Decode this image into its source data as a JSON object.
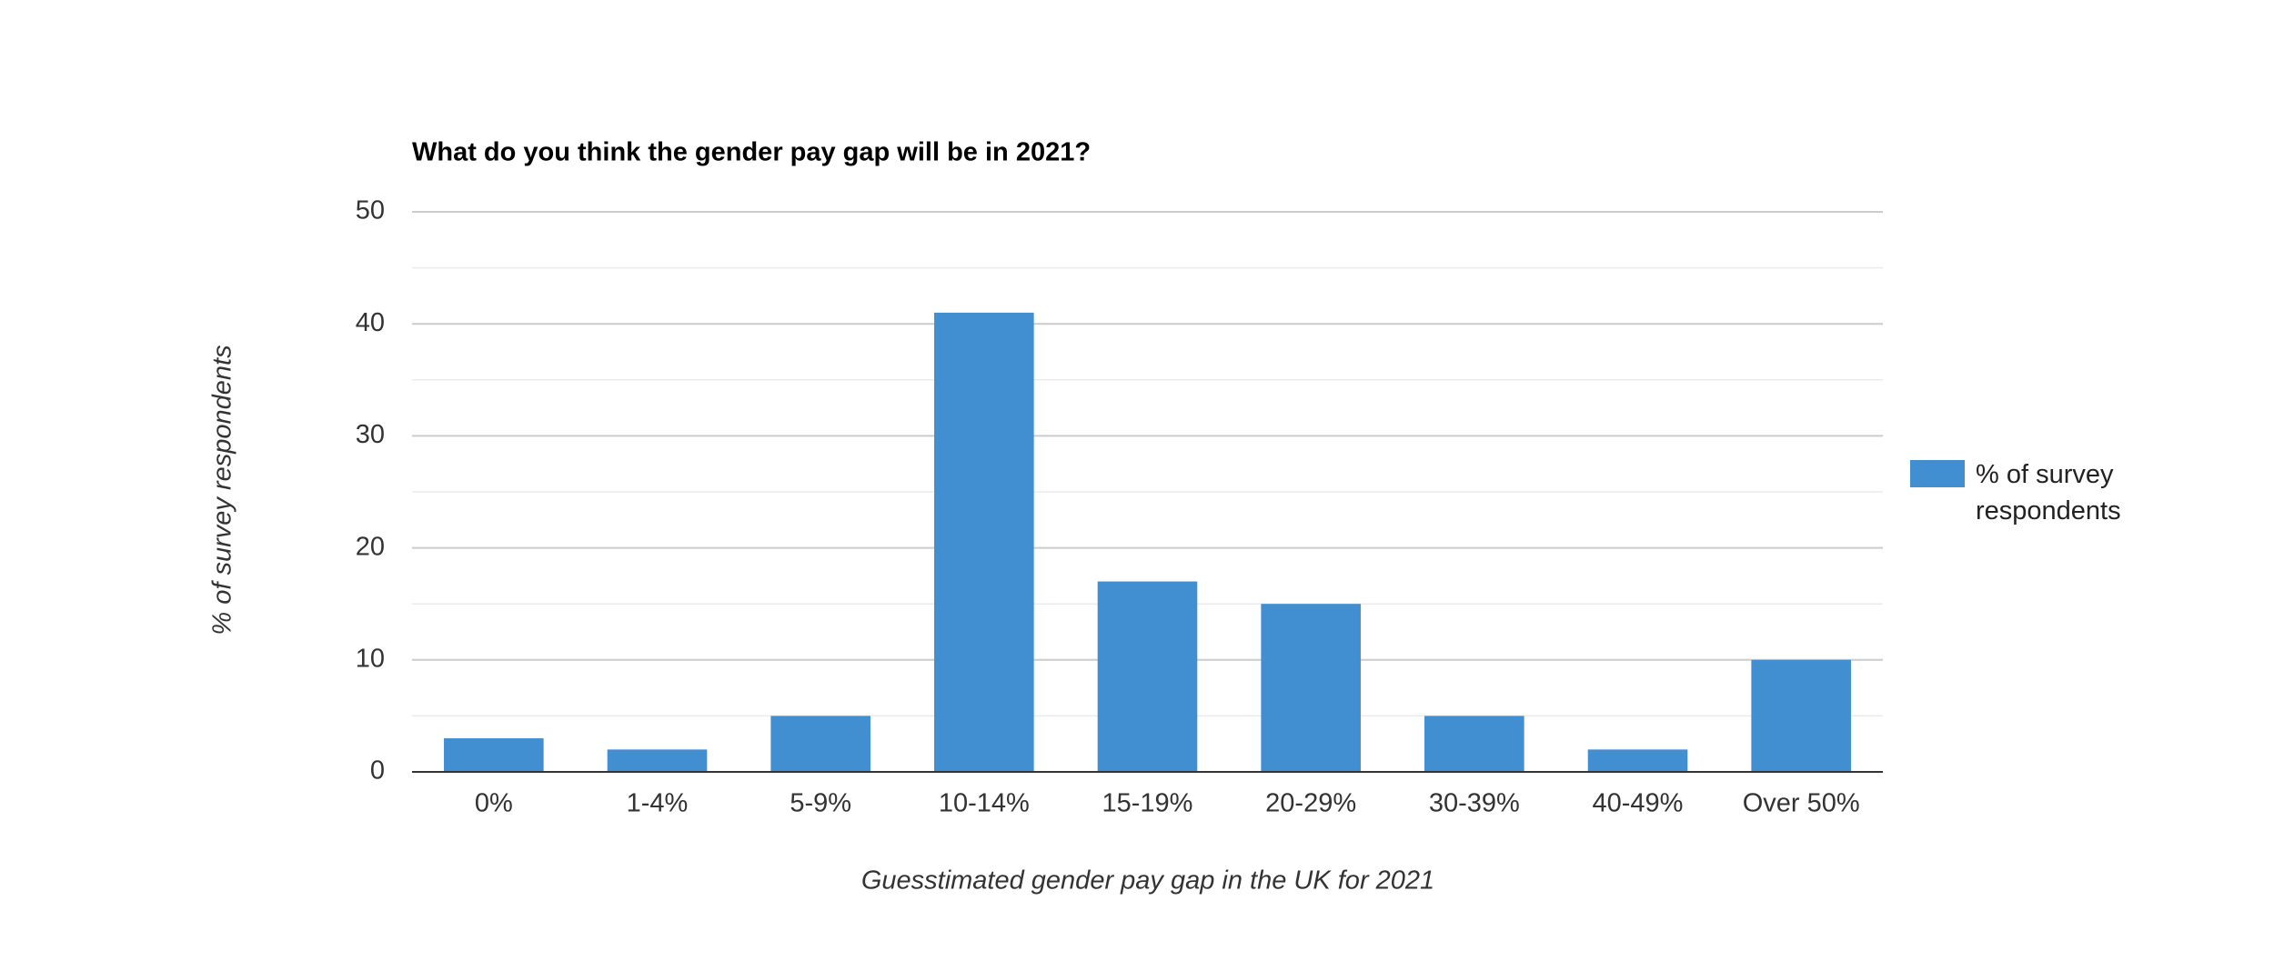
{
  "chart_data": {
    "type": "bar",
    "title": "What do you think the gender pay gap will be in 2021?",
    "x_label": "Guesstimated gender pay gap in the UK for 2021",
    "y_label": "% of survey respondents",
    "categories": [
      "0%",
      "1-4%",
      "5-9%",
      "10-14%",
      "15-19%",
      "20-29%",
      "30-39%",
      "40-49%",
      "Over 50%"
    ],
    "series": [
      {
        "name": "% of survey respondents",
        "color": "#418fd1",
        "values": [
          3,
          2,
          5,
          41,
          17,
          15,
          5,
          2,
          10
        ]
      }
    ],
    "ylim": [
      0,
      50
    ],
    "yticks": [
      0,
      10,
      20,
      30,
      40,
      50
    ],
    "minor_yticks": [
      5,
      15,
      25,
      35,
      45
    ],
    "grid": true,
    "legend": "right"
  }
}
